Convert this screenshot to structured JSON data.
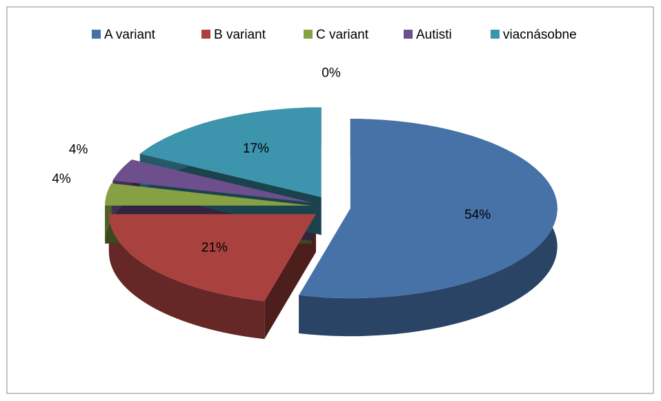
{
  "chart_data": {
    "type": "pie3d",
    "categories": [
      "A variant",
      "B variant",
      "C variant",
      "Autisti",
      "viacnásobne",
      null
    ],
    "values": [
      54,
      21,
      4,
      4,
      17,
      0
    ],
    "value_labels": [
      "54%",
      "21%",
      "4%",
      "4%",
      "17%",
      "0%"
    ],
    "colors": [
      "#4672a8",
      "#a9423f",
      "#86a044",
      "#6c4f8c",
      "#3d95ad"
    ],
    "legend": "top"
  }
}
